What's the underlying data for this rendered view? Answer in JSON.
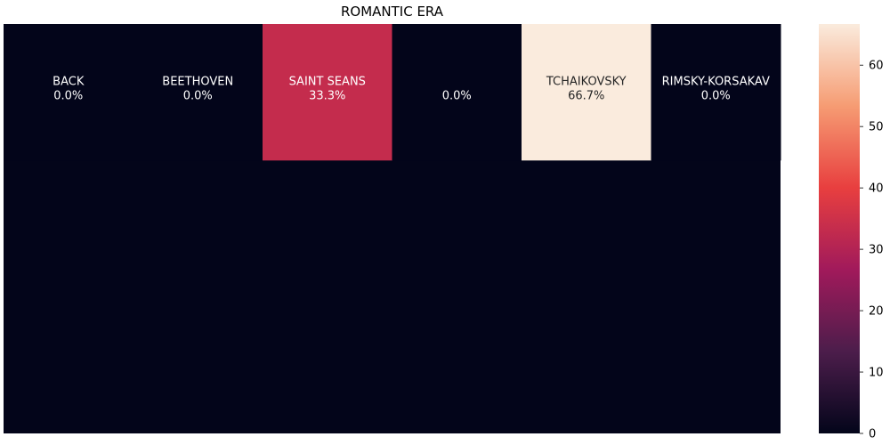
{
  "chart_data": {
    "type": "heatmap",
    "title": "ROMANTIC ERA",
    "xlabel": "",
    "ylabel": "",
    "columns": 6,
    "rows": 3,
    "cells": [
      {
        "row": 0,
        "col": 0,
        "name": "BACK",
        "value": 0.0,
        "label": "0.0%"
      },
      {
        "row": 0,
        "col": 1,
        "name": "BEETHOVEN",
        "value": 0.0,
        "label": "0.0%"
      },
      {
        "row": 0,
        "col": 2,
        "name": "SAINT SEANS",
        "value": 33.3,
        "label": "33.3%"
      },
      {
        "row": 0,
        "col": 3,
        "name": "",
        "value": 0.0,
        "label": "0.0%"
      },
      {
        "row": 0,
        "col": 4,
        "name": "TCHAIKOVSKY",
        "value": 66.7,
        "label": "66.7%"
      },
      {
        "row": 0,
        "col": 5,
        "name": "RIMSKY-KORSAKAV",
        "value": 0.0,
        "label": "0.0%"
      }
    ],
    "background_value": 0,
    "colorbar": {
      "range": [
        0,
        66.7
      ],
      "ticks": [
        0,
        10,
        20,
        30,
        40,
        50,
        60
      ],
      "colormap": "rocket",
      "colors": [
        "#03051a",
        "#4c1d4b",
        "#a11a5b",
        "#e83f3f",
        "#f69c73",
        "#faebdd"
      ]
    }
  }
}
